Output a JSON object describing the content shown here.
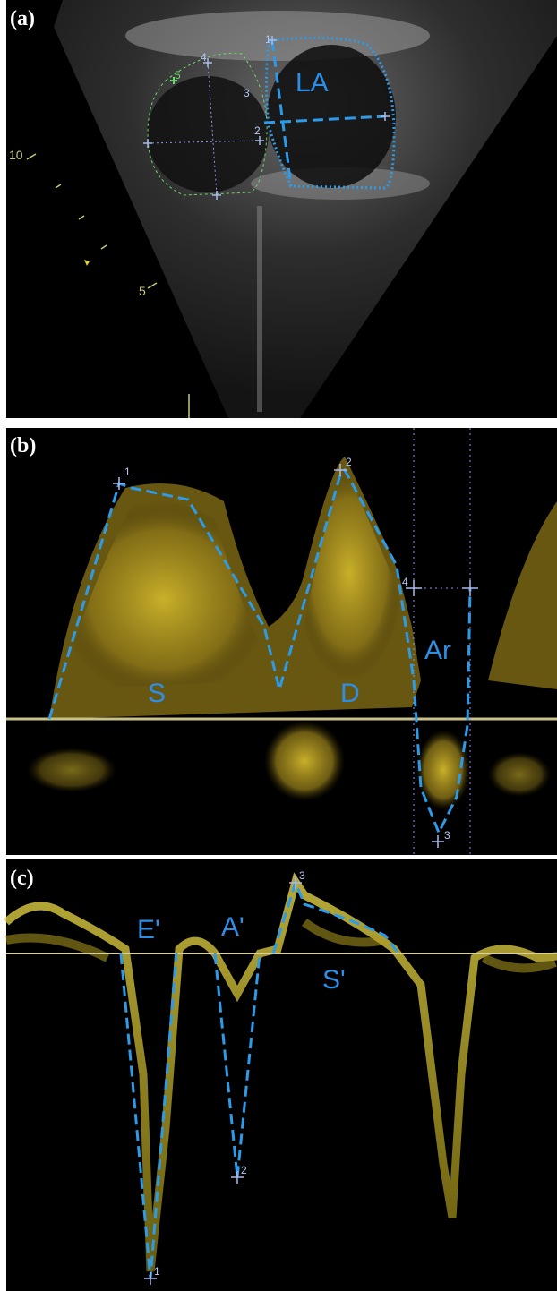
{
  "panels": [
    {
      "label": "(a)",
      "chamber": "LA",
      "depth_marks": [
        "10",
        "5"
      ],
      "points": [
        "1",
        "2",
        "3",
        "4",
        "5"
      ]
    },
    {
      "label": "(b)",
      "points": [
        "1",
        "2",
        "3",
        "4"
      ],
      "waves": [
        "S",
        "D",
        "Ar"
      ]
    },
    {
      "label": "(c)",
      "points": [
        "1",
        "2",
        "3"
      ],
      "waves": [
        "E'",
        "A'",
        "S'"
      ]
    }
  ]
}
